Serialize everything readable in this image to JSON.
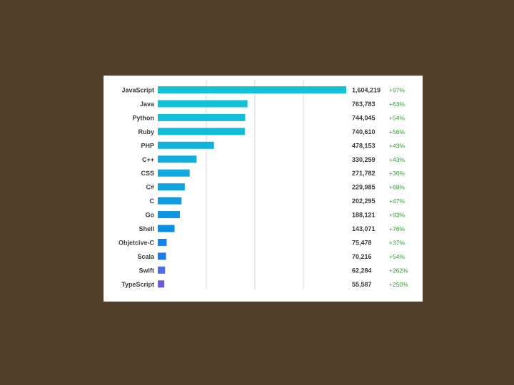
{
  "colors": {
    "background": "#513f2a",
    "panel": "#ffffff",
    "growth_text": "#2ea02e"
  },
  "chart_data": {
    "type": "bar",
    "orientation": "horizontal",
    "title": "",
    "xlabel": "",
    "ylabel": "",
    "grid": true,
    "xlim": [
      0,
      1604219
    ],
    "categories": [
      "JavaScript",
      "Java",
      "Python",
      "Ruby",
      "PHP",
      "C++",
      "CSS",
      "C#",
      "C",
      "Go",
      "Shell",
      "Objetcive-C",
      "Scala",
      "Swift",
      "TypeScript"
    ],
    "values": [
      1604219,
      763783,
      744045,
      740610,
      478153,
      330259,
      271782,
      229985,
      202295,
      188121,
      143071,
      75478,
      70216,
      62284,
      55587
    ],
    "value_labels": [
      "1,604,219",
      "763,783",
      "744,045",
      "740,610",
      "478,153",
      "330,259",
      "271,782",
      "229,985",
      "202,295",
      "188,121",
      "143,071",
      "75,478",
      "70,216",
      "62,284",
      "55,587"
    ],
    "growth_labels": [
      "+97%",
      "+63%",
      "+54%",
      "+56%",
      "+43%",
      "+43%",
      "+36%",
      "+68%",
      "+47%",
      "+93%",
      "+76%",
      "+37%",
      "+54%",
      "+262%",
      "+250%"
    ],
    "bar_colors": [
      "#12c3d6",
      "#12c0d8",
      "#12bed8",
      "#12bcd9",
      "#10b2db",
      "#10aedd",
      "#10aade",
      "#0fa3df",
      "#0e9ce2",
      "#0e96e4",
      "#0d8fe6",
      "#1583ea",
      "#1d7cec",
      "#4f6ee2",
      "#6a5ee0"
    ]
  }
}
